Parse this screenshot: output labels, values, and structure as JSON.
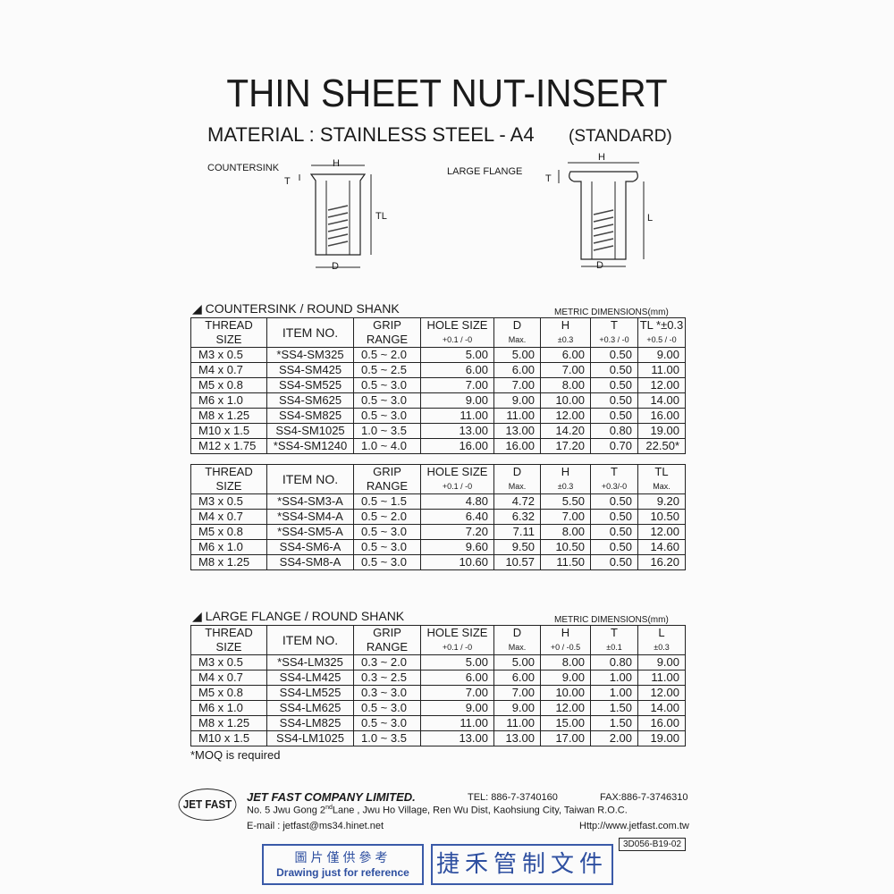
{
  "title": "THIN SHEET NUT-INSERT",
  "material": "MATERIAL : STAINLESS STEEL - A4",
  "standard": "(STANDARD)",
  "diagrams": {
    "countersink": {
      "label": "COUNTERSINK",
      "H": "H",
      "T": "T",
      "TL": "TL",
      "D": "D"
    },
    "large_flange": {
      "label": "LARGE FLANGE",
      "H": "H",
      "T": "T",
      "L": "L",
      "D": "D"
    }
  },
  "section1": {
    "title": "COUNTERSINK / ROUND SHANK",
    "metric": "METRIC DIMENSIONS(mm)",
    "headers": [
      [
        "THREAD",
        "SIZE"
      ],
      [
        "ITEM NO.",
        ""
      ],
      [
        "GRIP",
        "RANGE"
      ],
      [
        "HOLE SIZE",
        "+0.1 / -0"
      ],
      [
        "D",
        "Max."
      ],
      [
        "H",
        "±0.3"
      ],
      [
        "T",
        "+0.3 / -0"
      ],
      [
        "TL *±0.3",
        "+0.5 / -0"
      ]
    ],
    "rows": [
      [
        "M3 x 0.5",
        "*SS4-SM325",
        "0.5 ~ 2.0",
        "5.00",
        "5.00",
        "6.00",
        "0.50",
        "9.00"
      ],
      [
        "M4 x 0.7",
        "SS4-SM425",
        "0.5 ~ 2.5",
        "6.00",
        "6.00",
        "7.00",
        "0.50",
        "11.00"
      ],
      [
        "M5 x 0.8",
        "SS4-SM525",
        "0.5 ~ 3.0",
        "7.00",
        "7.00",
        "8.00",
        "0.50",
        "12.00"
      ],
      [
        "M6 x 1.0",
        "SS4-SM625",
        "0.5 ~ 3.0",
        "9.00",
        "9.00",
        "10.00",
        "0.50",
        "14.00"
      ],
      [
        "M8 x 1.25",
        "SS4-SM825",
        "0.5 ~ 3.0",
        "11.00",
        "11.00",
        "12.00",
        "0.50",
        "16.00"
      ],
      [
        "M10 x 1.5",
        "SS4-SM1025",
        "1.0 ~ 3.5",
        "13.00",
        "13.00",
        "14.20",
        "0.80",
        "19.00"
      ],
      [
        "M12 x 1.75",
        "*SS4-SM1240",
        "1.0 ~ 4.0",
        "16.00",
        "16.00",
        "17.20",
        "0.70",
        "22.50*"
      ]
    ]
  },
  "section2": {
    "headers": [
      [
        "THREAD",
        "SIZE"
      ],
      [
        "ITEM NO.",
        ""
      ],
      [
        "GRIP",
        "RANGE"
      ],
      [
        "HOLE SIZE",
        "+0.1 / -0"
      ],
      [
        "D",
        "Max."
      ],
      [
        "H",
        "±0.3"
      ],
      [
        "T",
        "+0.3/-0"
      ],
      [
        "TL",
        "Max."
      ]
    ],
    "rows": [
      [
        "M3 x 0.5",
        "*SS4-SM3-A",
        "0.5 ~ 1.5",
        "4.80",
        "4.72",
        "5.50",
        "0.50",
        "9.20"
      ],
      [
        "M4 x 0.7",
        "*SS4-SM4-A",
        "0.5 ~ 2.0",
        "6.40",
        "6.32",
        "7.00",
        "0.50",
        "10.50"
      ],
      [
        "M5 x 0.8",
        "*SS4-SM5-A",
        "0.5 ~ 3.0",
        "7.20",
        "7.11",
        "8.00",
        "0.50",
        "12.00"
      ],
      [
        "M6 x 1.0",
        "SS4-SM6-A",
        "0.5 ~ 3.0",
        "9.60",
        "9.50",
        "10.50",
        "0.50",
        "14.60"
      ],
      [
        "M8 x 1.25",
        "SS4-SM8-A",
        "0.5 ~ 3.0",
        "10.60",
        "10.57",
        "11.50",
        "0.50",
        "16.20"
      ]
    ]
  },
  "section3": {
    "title": "LARGE FLANGE / ROUND SHANK",
    "metric": "METRIC DIMENSIONS(mm)",
    "headers": [
      [
        "THREAD",
        "SIZE"
      ],
      [
        "ITEM NO.",
        ""
      ],
      [
        "GRIP",
        "RANGE"
      ],
      [
        "HOLE SIZE",
        "+0.1 / -0"
      ],
      [
        "D",
        "Max."
      ],
      [
        "H",
        "+0 / -0.5"
      ],
      [
        "T",
        "±0.1"
      ],
      [
        "L",
        "±0.3"
      ]
    ],
    "rows": [
      [
        "M3 x 0.5",
        "*SS4-LM325",
        "0.3 ~ 2.0",
        "5.00",
        "5.00",
        "8.00",
        "0.80",
        "9.00"
      ],
      [
        "M4 x 0.7",
        "SS4-LM425",
        "0.3 ~ 2.5",
        "6.00",
        "6.00",
        "9.00",
        "1.00",
        "11.00"
      ],
      [
        "M5 x 0.8",
        "SS4-LM525",
        "0.3 ~ 3.0",
        "7.00",
        "7.00",
        "10.00",
        "1.00",
        "12.00"
      ],
      [
        "M6 x 1.0",
        "SS4-LM625",
        "0.5 ~ 3.0",
        "9.00",
        "9.00",
        "12.00",
        "1.50",
        "14.00"
      ],
      [
        "M8 x 1.25",
        "SS4-LM825",
        "0.5 ~ 3.0",
        "11.00",
        "11.00",
        "15.00",
        "1.50",
        "16.00"
      ],
      [
        "M10 x 1.5",
        "SS4-LM1025",
        "1.0 ~ 3.5",
        "13.00",
        "13.00",
        "17.00",
        "2.00",
        "19.00"
      ]
    ]
  },
  "moq": "*MOQ is required",
  "footer": {
    "logo": "JET FAST",
    "company": "JET FAST COMPANY LIMITED.",
    "tel": "TEL: 886-7-3740160",
    "fax": "FAX:886-7-3746310",
    "address_pre": "No. 5 Jwu Gong 2",
    "address_sup": "nd",
    "address_post": "Lane , Jwu Ho Village, Ren Wu Dist, Kaohsiung City, Taiwan R.O.C.",
    "email": "E-mail : jetfast@ms34.hinet.net",
    "web": "Http://www.jetfast.com.tw",
    "doc_code": "3D056-B19-02"
  },
  "stamps": {
    "ref_cn": "圖片僅供參考",
    "ref_en": "Drawing just for reference",
    "control": "捷禾管制文件",
    "color": "#2e4fa0"
  }
}
